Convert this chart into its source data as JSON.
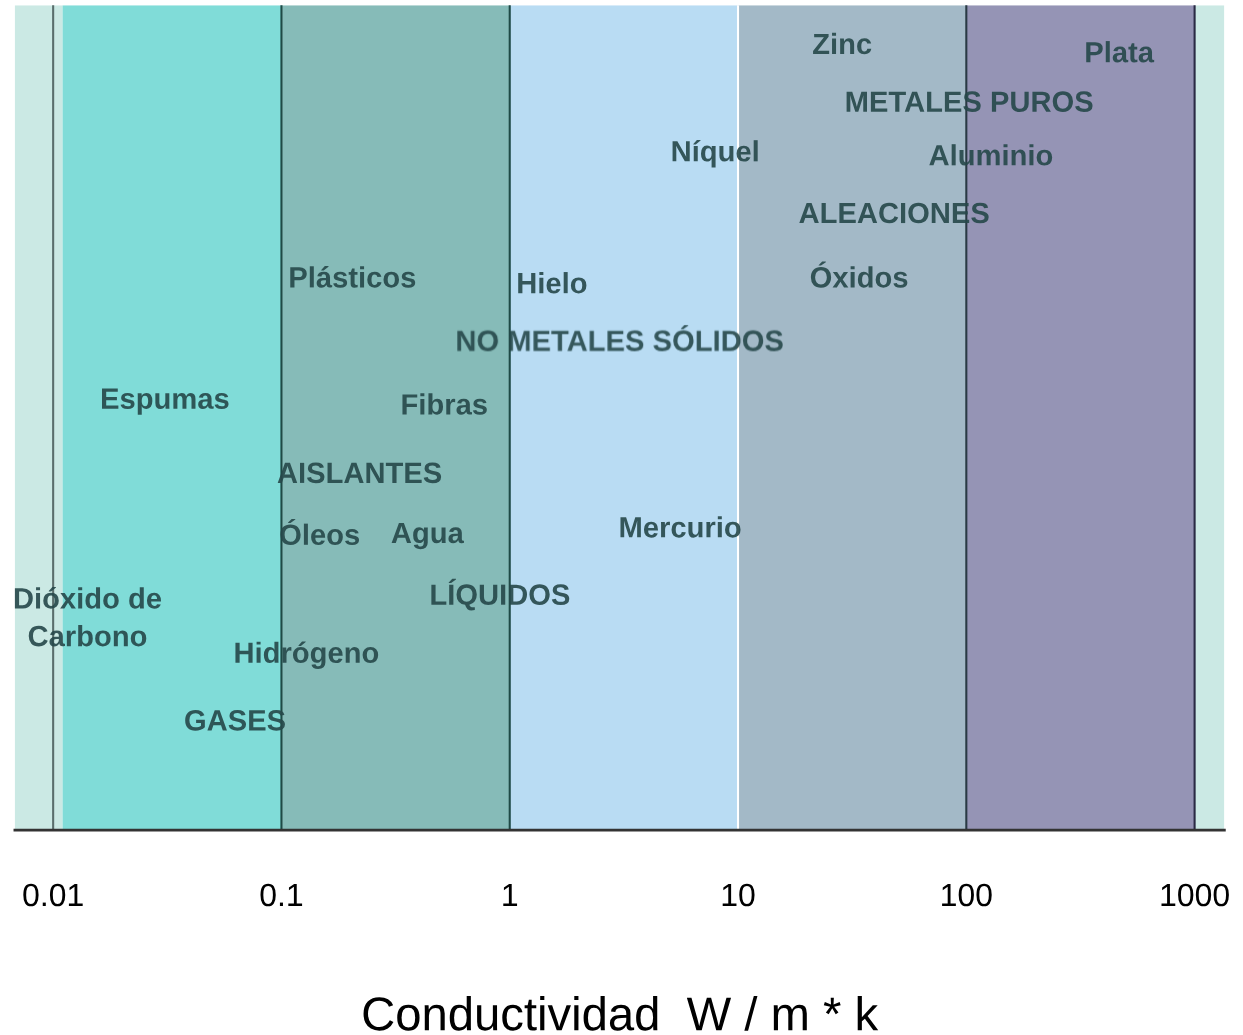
{
  "chart_data": {
    "type": "bar",
    "orientation": "horizontal",
    "stacked": true,
    "log": "x",
    "grid": false,
    "xlabel": "Conductividad  W / m * k",
    "xlim": [
      0.0068,
      1350
    ],
    "xticks": [
      0.01,
      0.1,
      1,
      10,
      100,
      1000
    ],
    "categories": [
      null
    ],
    "series": [
      {
        "color": "#cbe9e4",
        "values": [
          0.011
        ]
      },
      {
        "color": "#80dcd8",
        "values": [
          0.089
        ]
      },
      {
        "color": "#86bbb8",
        "values": [
          0.9
        ]
      },
      {
        "color": "#b9dcf3",
        "values": [
          9
        ]
      },
      {
        "color": "#a3b9c7",
        "values": [
          90
        ]
      },
      {
        "color": "#9594b5",
        "values": [
          900
        ]
      },
      {
        "color": "#cbe9e4",
        "values": [
          350
        ]
      }
    ],
    "ref_lines": [
      {
        "axis": "x",
        "value": 0.01,
        "color": "#5a6e6c"
      },
      {
        "axis": "x",
        "value": 0.1,
        "color": "#1f4a46"
      },
      {
        "axis": "x",
        "value": 1,
        "color": "#1f4a46"
      },
      {
        "axis": "x",
        "value": 10,
        "color": "#ffffff"
      },
      {
        "axis": "x",
        "value": 100,
        "color": "#2a3a44"
      },
      {
        "axis": "x",
        "value": 1000,
        "color": "#2a2a44"
      }
    ],
    "annotations": [
      "Zinc",
      "Plata",
      "METALES PUROS",
      "Níquel",
      "Aluminio",
      "ALEACIONES",
      "Plásticos",
      "Hielo",
      "Óxidos",
      "NO METALES SÓLIDOS",
      "Espumas",
      "Fibras",
      "AISLANTES",
      "Óleos",
      "Agua",
      "Mercurio",
      "LÍQUIDOS",
      "Dióxido de\nCarbono",
      "Hidrógeno",
      "GASES"
    ]
  }
}
